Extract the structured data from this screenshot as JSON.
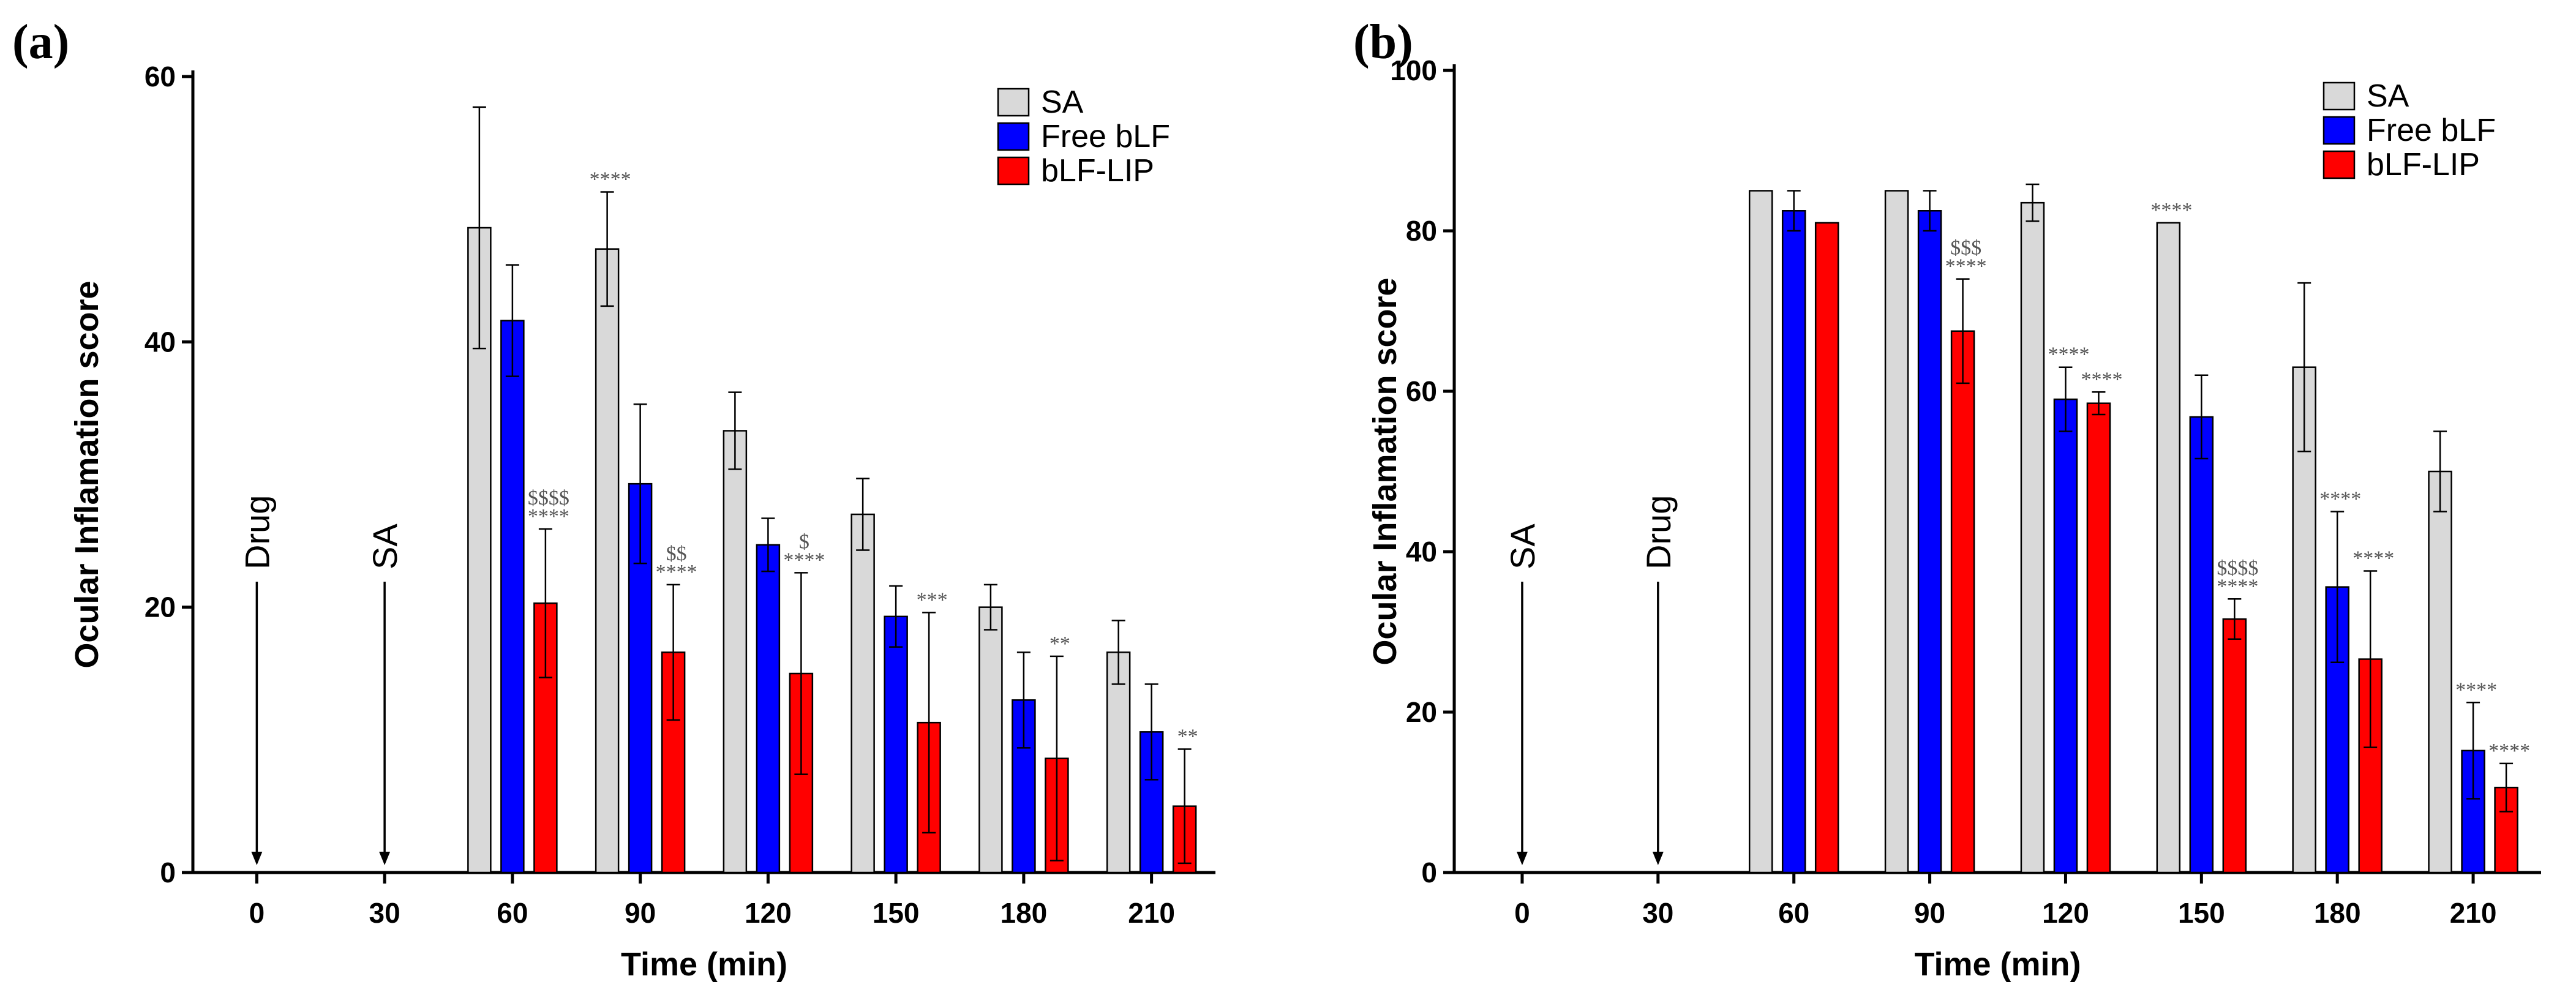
{
  "chart_data": [
    {
      "panel_label": "(a)",
      "type": "bar",
      "categories": [
        "0",
        "30",
        "60",
        "90",
        "120",
        "150",
        "180",
        "210"
      ],
      "xlabel": "Time (min)",
      "ylabel": "Ocular Inflamation score",
      "ylim": [
        0,
        60
      ],
      "yticks": [
        "0",
        "20",
        "40",
        "60"
      ],
      "legend_position": "top-right",
      "series": [
        {
          "name": "SA",
          "color": "#d9d9d9",
          "values": [
            null,
            null,
            48.6,
            47.0,
            33.3,
            27.0,
            20.0,
            16.6
          ],
          "errors": [
            null,
            null,
            9.1,
            4.3,
            2.9,
            2.7,
            1.7,
            2.4
          ]
        },
        {
          "name": "Free bLF",
          "color": "#0000ff",
          "values": [
            null,
            null,
            41.6,
            29.3,
            24.7,
            19.3,
            13.0,
            10.6
          ],
          "errors": [
            null,
            null,
            4.2,
            6.0,
            2.0,
            2.3,
            3.6,
            3.6
          ]
        },
        {
          "name": "bLF-LIP",
          "color": "#ff0000",
          "values": [
            null,
            null,
            20.3,
            16.6,
            15.0,
            11.3,
            8.6,
            5.0
          ],
          "errors": [
            null,
            null,
            5.6,
            5.1,
            7.6,
            8.3,
            7.7,
            4.3
          ]
        }
      ],
      "events": [
        {
          "label": "Drug",
          "x": "0"
        },
        {
          "label": "SA",
          "x": "30"
        }
      ],
      "annotations": [
        {
          "category": "60",
          "series": 2,
          "lines": [
            "$$$$",
            "****"
          ]
        },
        {
          "category": "90",
          "series": 0,
          "lines": [
            "****"
          ]
        },
        {
          "category": "90",
          "series": 2,
          "lines": [
            "$$",
            "****"
          ]
        },
        {
          "category": "120",
          "series": 2,
          "lines": [
            "$",
            "****"
          ]
        },
        {
          "category": "150",
          "series": 2,
          "lines": [
            "***"
          ]
        },
        {
          "category": "180",
          "series": 2,
          "lines": [
            "**"
          ]
        },
        {
          "category": "210",
          "series": 2,
          "lines": [
            "**"
          ]
        }
      ]
    },
    {
      "panel_label": "(b)",
      "type": "bar",
      "categories": [
        "0",
        "30",
        "60",
        "90",
        "120",
        "150",
        "180",
        "210"
      ],
      "xlabel": "Time (min)",
      "ylabel": "Ocular Inflamation score",
      "ylim": [
        0,
        100
      ],
      "yticks": [
        "0",
        "20",
        "40",
        "60",
        "80",
        "100"
      ],
      "legend_position": "top-right",
      "series": [
        {
          "name": "SA",
          "color": "#d9d9d9",
          "values": [
            null,
            null,
            85.0,
            85.0,
            83.5,
            81.0,
            63.0,
            50.0
          ],
          "errors": [
            null,
            null,
            0,
            0,
            2.3,
            0,
            10.5,
            5.0
          ]
        },
        {
          "name": "Free bLF",
          "color": "#0000ff",
          "values": [
            null,
            null,
            82.5,
            82.5,
            59.0,
            56.8,
            35.6,
            15.2
          ],
          "errors": [
            null,
            null,
            2.5,
            2.5,
            4.0,
            5.2,
            9.4,
            6.0
          ]
        },
        {
          "name": "bLF-LIP",
          "color": "#ff0000",
          "values": [
            null,
            null,
            81.0,
            67.5,
            58.5,
            31.6,
            26.6,
            10.6
          ],
          "errors": [
            null,
            null,
            0,
            6.5,
            1.4,
            2.5,
            11.0,
            3.0
          ]
        }
      ],
      "events": [
        {
          "label": "SA",
          "x": "0"
        },
        {
          "label": "Drug",
          "x": "30"
        }
      ],
      "annotations": [
        {
          "category": "90",
          "series": 2,
          "lines": [
            "$$$",
            "****"
          ]
        },
        {
          "category": "120",
          "series": 1,
          "lines": [
            "****"
          ]
        },
        {
          "category": "120",
          "series": 2,
          "lines": [
            "****"
          ]
        },
        {
          "category": "150",
          "series": 0,
          "lines": [
            "****"
          ]
        },
        {
          "category": "150",
          "series": 2,
          "lines": [
            "$$$$",
            "****"
          ]
        },
        {
          "category": "180",
          "series": 1,
          "lines": [
            "****"
          ]
        },
        {
          "category": "180",
          "series": 2,
          "lines": [
            "****"
          ]
        },
        {
          "category": "210",
          "series": 1,
          "lines": [
            "****"
          ]
        },
        {
          "category": "210",
          "series": 2,
          "lines": [
            "****"
          ]
        }
      ]
    }
  ]
}
